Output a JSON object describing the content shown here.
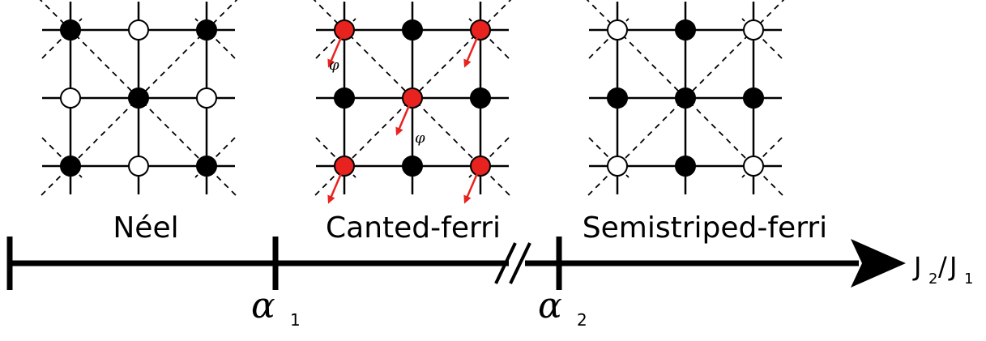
{
  "panels": [
    {
      "label": "Néel",
      "spins": [
        [
          "filled",
          "open",
          "filled"
        ],
        [
          "open",
          "filled",
          "open"
        ],
        [
          "filled",
          "open",
          "filled"
        ]
      ]
    },
    {
      "label": "Canted-ferri",
      "spins": [
        [
          "red",
          "filled",
          "red"
        ],
        [
          "filled",
          "red",
          "filled"
        ],
        [
          "red",
          "filled",
          "red"
        ]
      ],
      "angle_symbol": "φ"
    },
    {
      "label": "Semistriped-ferri",
      "spins": [
        [
          "open",
          "filled",
          "open"
        ],
        [
          "filled",
          "filled",
          "filled"
        ],
        [
          "open",
          "filled",
          "open"
        ]
      ]
    }
  ],
  "axis": {
    "x_label_main": "J",
    "x_label_sub1": "2",
    "x_label_slash": "/",
    "x_label_main2": "J",
    "x_label_sub2": "1",
    "critical_points": [
      {
        "symbol": "α",
        "sub": "1"
      },
      {
        "symbol": "α",
        "sub": "2"
      }
    ]
  },
  "colors": {
    "spin_red": "#e8231f",
    "arrow_red": "#e8231f",
    "ink": "#000000"
  }
}
